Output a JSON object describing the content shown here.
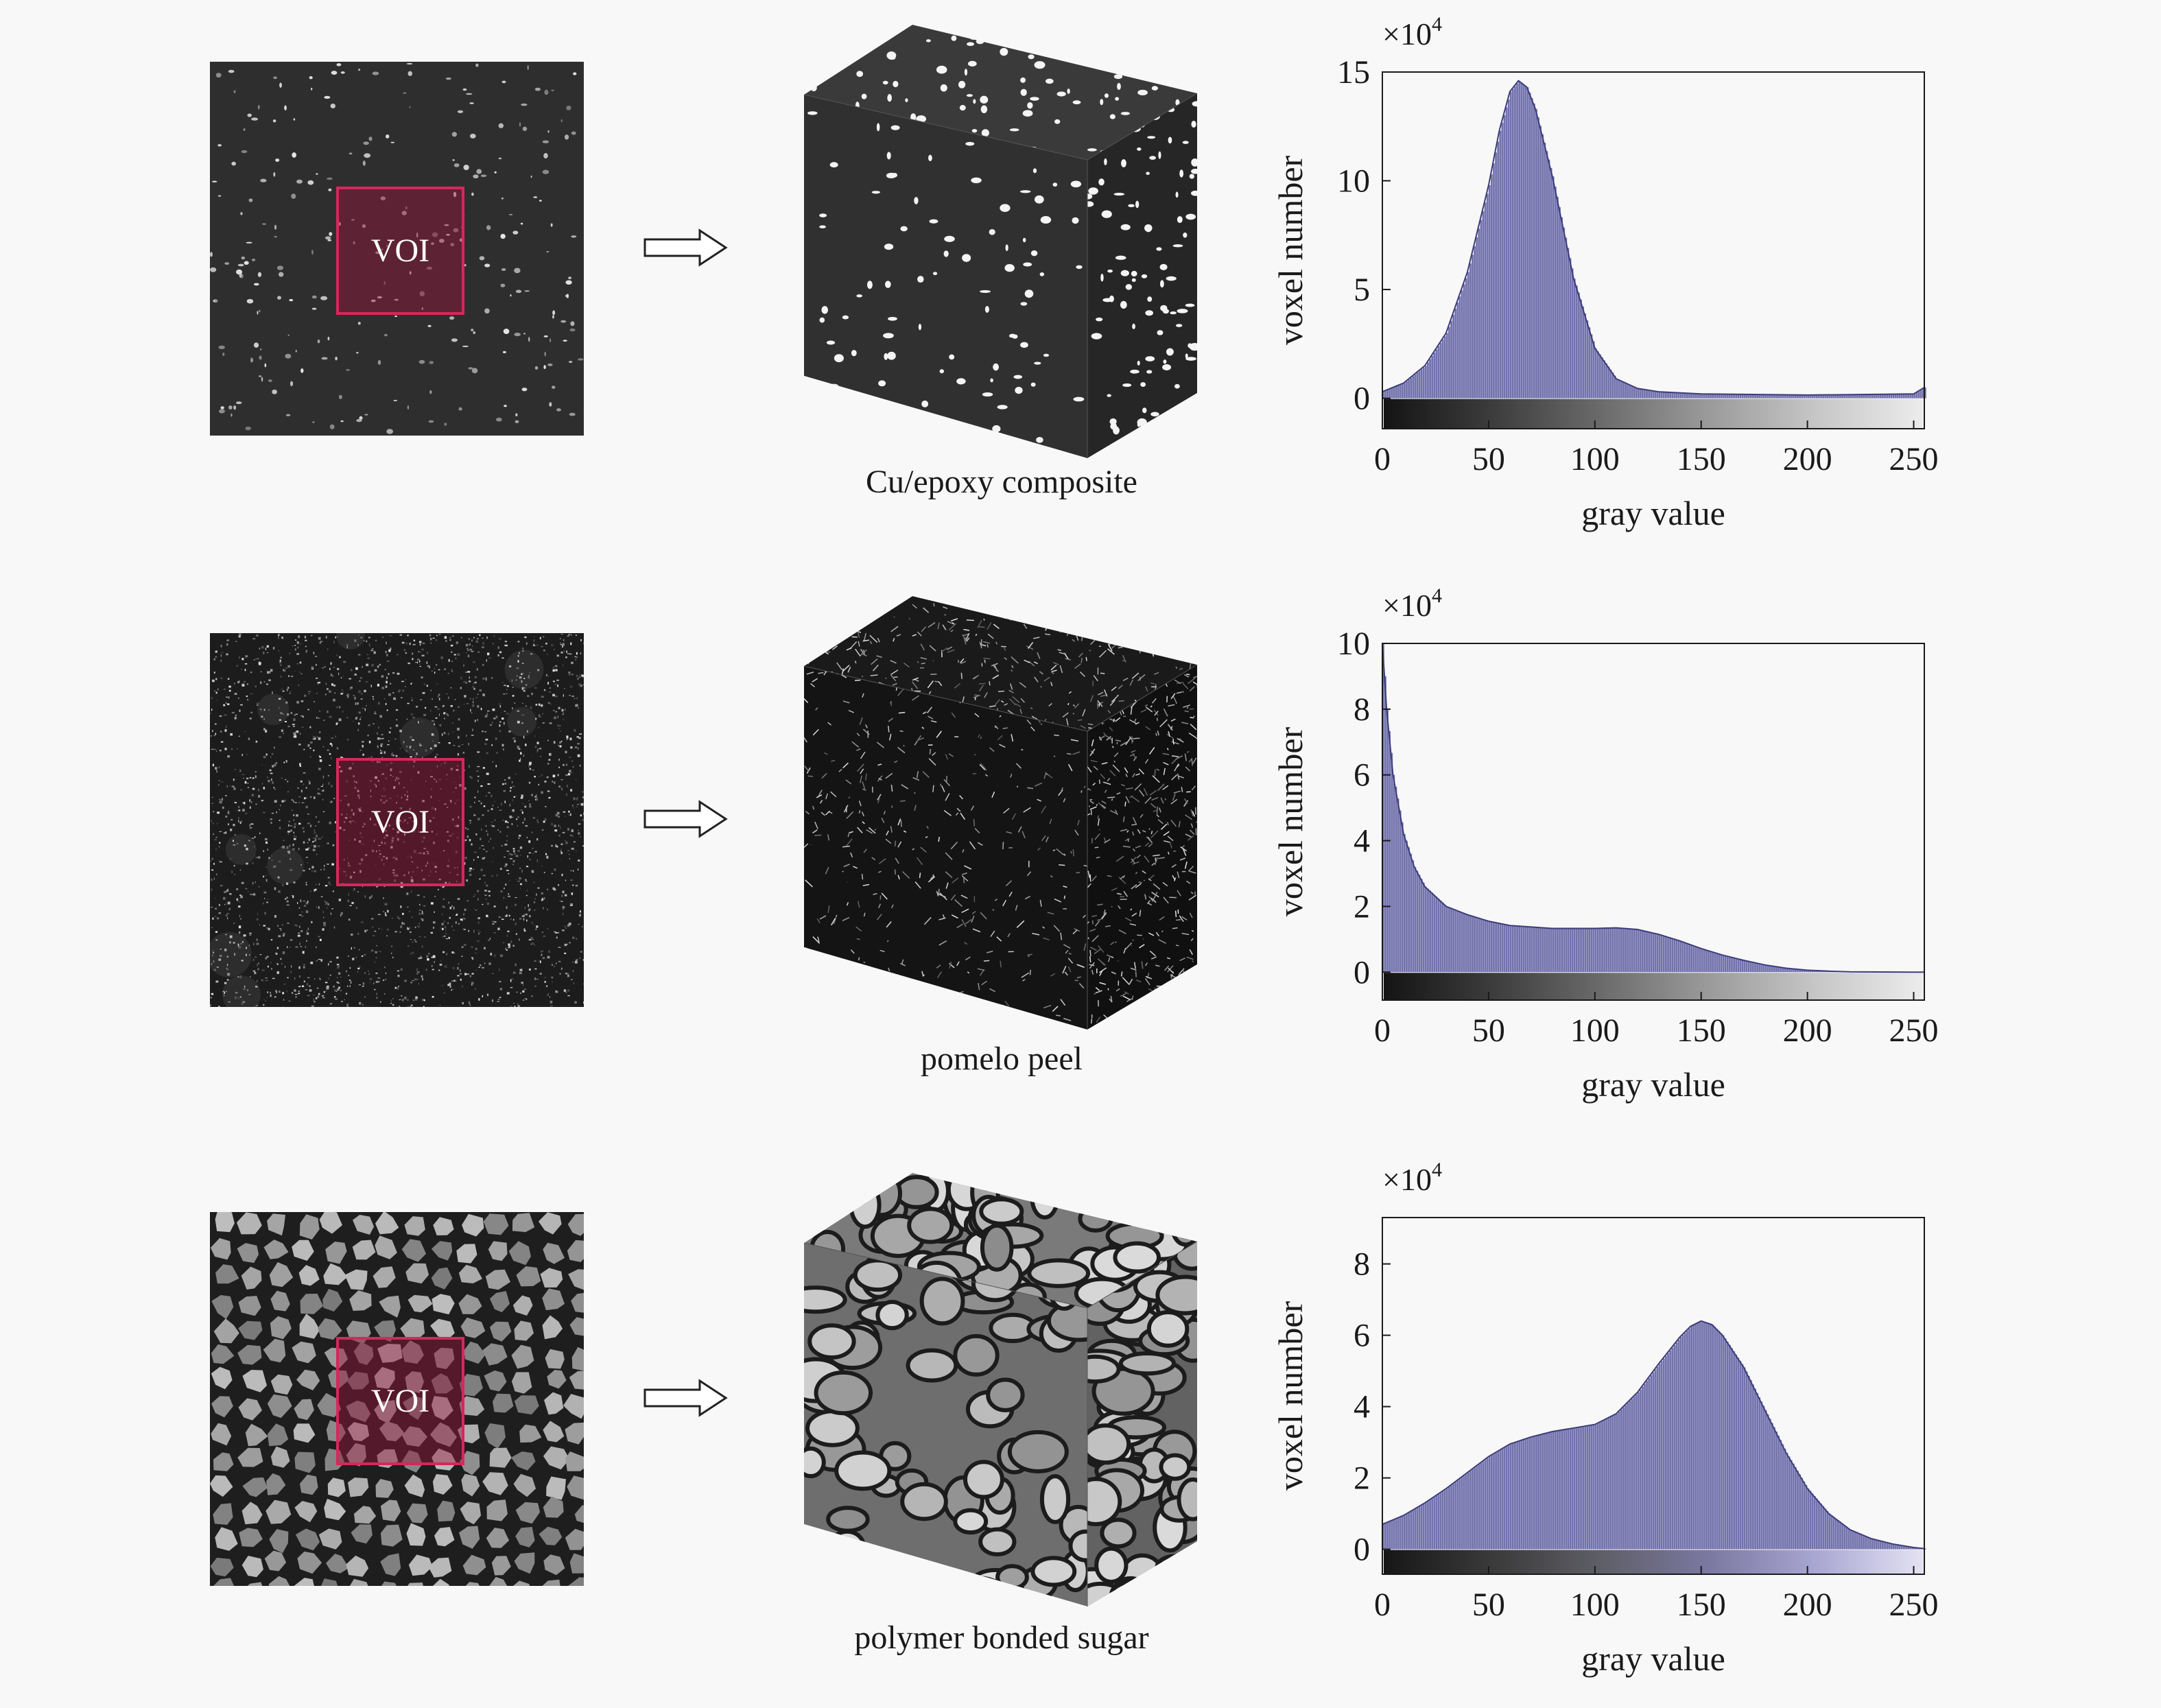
{
  "voi_label": "VOI",
  "chart_data": [
    {
      "type": "bar",
      "title": "",
      "sample": "Cu/epoxy composite",
      "xlabel": "gray value",
      "ylabel": "voxel number",
      "y_multiplier": "×10",
      "y_multiplier_exp": "4",
      "xlim": [
        0,
        255
      ],
      "ylim": [
        -1.4,
        15
      ],
      "xticks": [
        0,
        50,
        100,
        150,
        200,
        250
      ],
      "yticks": [
        0,
        5,
        10,
        15
      ],
      "bar_color": "#5b5aa0",
      "peak": 14.6,
      "curve_x": [
        0,
        10,
        20,
        30,
        40,
        50,
        55,
        60,
        64,
        68,
        72,
        80,
        90,
        100,
        110,
        120,
        130,
        150,
        200,
        250,
        255
      ],
      "curve_y": [
        0.3,
        0.7,
        1.5,
        3.0,
        5.8,
        9.8,
        12.3,
        14.1,
        14.6,
        14.3,
        13.3,
        10.2,
        5.5,
        2.3,
        0.9,
        0.45,
        0.3,
        0.2,
        0.15,
        0.2,
        0.5
      ],
      "colorbar": [
        "#141414",
        "#3c3c3c",
        "#6a6a6a",
        "#9a9a9a",
        "#c6c6c6",
        "#ececec"
      ]
    },
    {
      "type": "bar",
      "title": "",
      "sample": "pomelo peel",
      "xlabel": "gray value",
      "ylabel": "voxel number",
      "y_multiplier": "×10",
      "y_multiplier_exp": "4",
      "xlim": [
        0,
        255
      ],
      "ylim": [
        -0.85,
        10
      ],
      "xticks": [
        0,
        50,
        100,
        150,
        200,
        250
      ],
      "yticks": [
        0,
        2,
        4,
        6,
        8,
        10
      ],
      "bar_color": "#5b5aa0",
      "peak": 10.0,
      "curve_x": [
        0,
        2,
        5,
        10,
        15,
        20,
        30,
        40,
        50,
        60,
        80,
        100,
        110,
        120,
        130,
        140,
        150,
        160,
        170,
        180,
        190,
        200,
        210,
        220,
        250,
        255
      ],
      "curve_y": [
        10.0,
        8.0,
        6.0,
        4.2,
        3.2,
        2.6,
        2.0,
        1.75,
        1.55,
        1.42,
        1.33,
        1.33,
        1.35,
        1.3,
        1.15,
        0.95,
        0.72,
        0.52,
        0.36,
        0.22,
        0.12,
        0.06,
        0.03,
        0.01,
        0.0,
        0.0
      ],
      "colorbar": [
        "#141414",
        "#3c3c3c",
        "#6a6a6a",
        "#9a9a9a",
        "#c6c6c6",
        "#ececec"
      ]
    },
    {
      "type": "bar",
      "title": "",
      "sample": "polymer bonded sugar",
      "xlabel": "gray value",
      "ylabel": "voxel number",
      "y_multiplier": "×10",
      "y_multiplier_exp": "4",
      "xlim": [
        0,
        255
      ],
      "ylim": [
        -0.7,
        9.3
      ],
      "xticks": [
        0,
        50,
        100,
        150,
        200,
        250
      ],
      "yticks": [
        0,
        2,
        4,
        6,
        8
      ],
      "bar_color": "#5b5aa0",
      "peak": 6.4,
      "curve_x": [
        0,
        10,
        20,
        30,
        40,
        50,
        60,
        70,
        80,
        90,
        100,
        110,
        120,
        130,
        140,
        145,
        150,
        155,
        160,
        170,
        180,
        190,
        200,
        210,
        220,
        230,
        240,
        250,
        255
      ],
      "curve_y": [
        0.7,
        0.95,
        1.3,
        1.7,
        2.15,
        2.6,
        2.95,
        3.15,
        3.3,
        3.4,
        3.5,
        3.8,
        4.4,
        5.2,
        5.95,
        6.25,
        6.4,
        6.3,
        6.0,
        5.1,
        3.9,
        2.7,
        1.7,
        1.0,
        0.55,
        0.3,
        0.15,
        0.05,
        0.02
      ],
      "colorbar": [
        "#161616",
        "#3a3a3a",
        "#5e5e66",
        "#7a78a0",
        "#a8a6d2",
        "#e4e2f2"
      ]
    }
  ]
}
